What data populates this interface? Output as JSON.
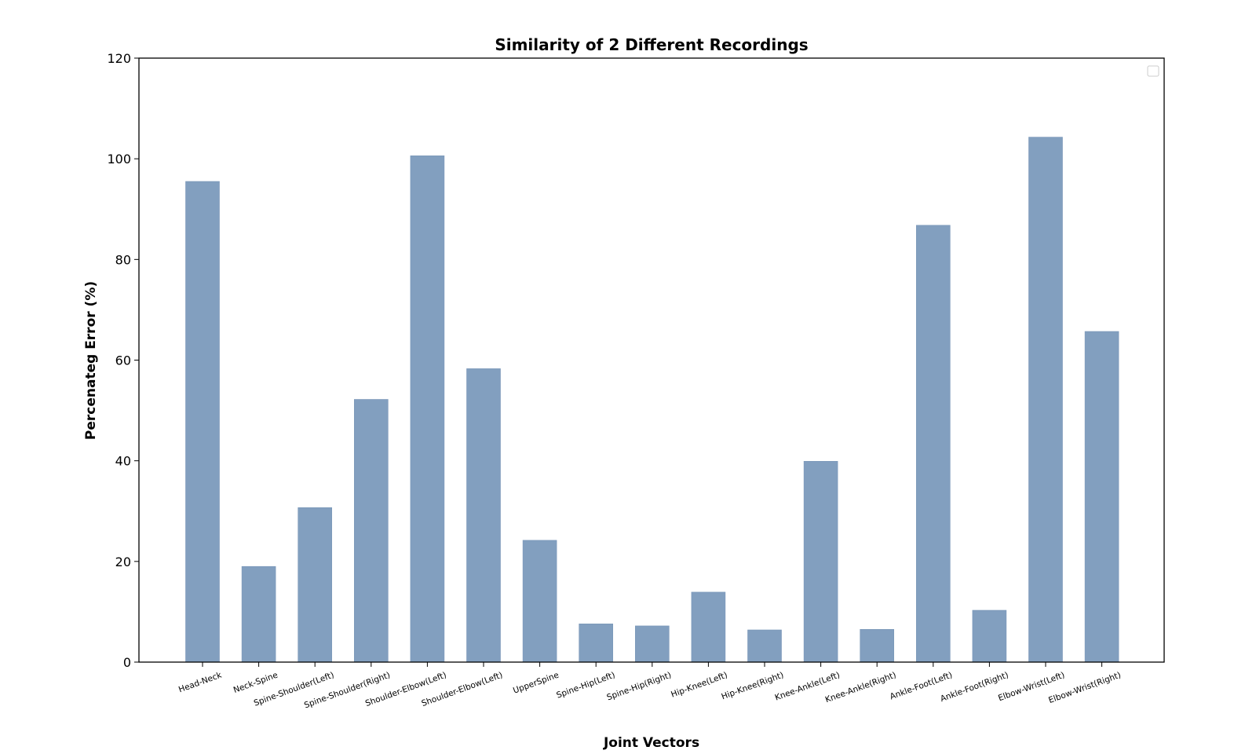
{
  "chart_data": {
    "type": "bar",
    "title": "Similarity of 2 Different Recordings",
    "xlabel": "Joint Vectors",
    "ylabel": "Percenateg Error (%)",
    "ylim": [
      0,
      120
    ],
    "yticks": [
      0,
      20,
      40,
      60,
      80,
      100,
      120
    ],
    "grid": false,
    "legend": "top-right (empty)",
    "bar_color": "#829fbf",
    "categories": [
      "Head-Neck",
      "Neck-Spine",
      "Spine-Shoulder(Left)",
      "Spine-Shoulder(Right)",
      "Shoulder-Elbow(Left)",
      "Shoulder-Elbow(Left)",
      "UpperSpine",
      "Spine-Hip(Left)",
      "Spine-Hip(Right)",
      "Hip-Knee(Left)",
      "Hip-Knee(Right)",
      "Knee-Ankle(Left)",
      "Knee-Ankle(Right)",
      "Ankle-Foot(Left)",
      "Ankle-Foot(Right)",
      "Elbow-Wrist(Left)",
      "Elbow-Wrist(Right)"
    ],
    "values": [
      95.5,
      19.0,
      30.7,
      52.2,
      100.6,
      58.3,
      24.2,
      7.6,
      7.2,
      13.9,
      6.4,
      39.9,
      6.5,
      86.8,
      10.3,
      104.3,
      65.7
    ]
  }
}
